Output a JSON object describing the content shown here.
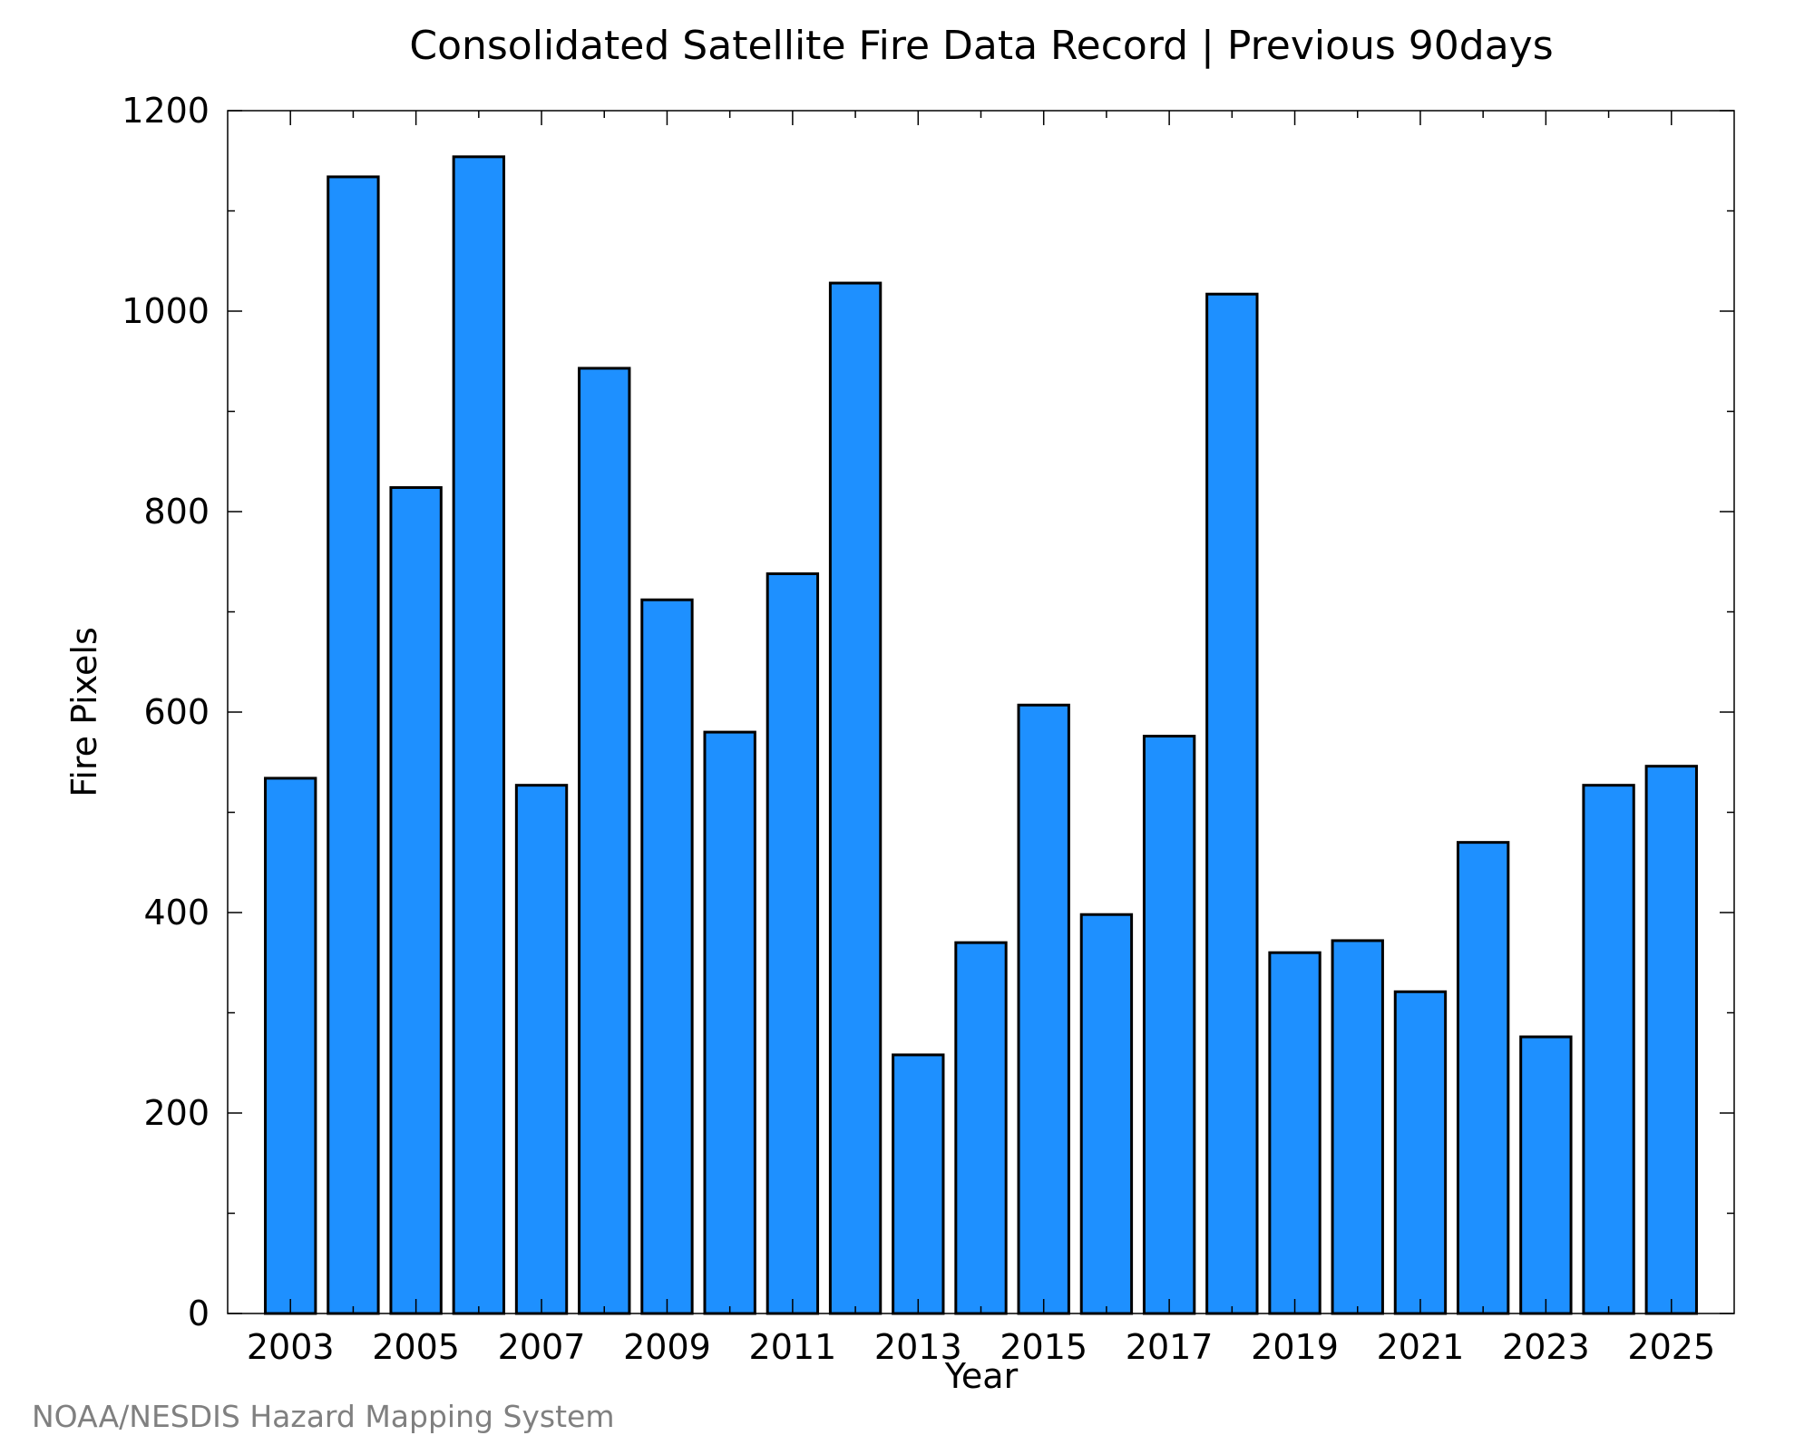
{
  "credit": "NOAA/NESDIS Hazard Mapping System",
  "colors": {
    "bar_fill": "#1E90FF",
    "bar_stroke": "#000000",
    "axis": "#000000",
    "credit_text": "#808080",
    "background": "#FFFFFF"
  },
  "chart_data": {
    "type": "bar",
    "title": "Consolidated Satellite Fire Data Record | Previous 90days",
    "xlabel": "Year",
    "ylabel": "Fire Pixels",
    "ylim": [
      0,
      1200
    ],
    "xlim": [
      2002.0,
      2026.0
    ],
    "yticks": [
      0,
      200,
      400,
      600,
      800,
      1000,
      1200
    ],
    "ytick_labels": [
      "0",
      "200",
      "400",
      "600",
      "800",
      "1000",
      "1200"
    ],
    "xticks": [
      2003,
      2005,
      2007,
      2009,
      2011,
      2013,
      2015,
      2017,
      2019,
      2021,
      2023,
      2025
    ],
    "xtick_labels": [
      "2003",
      "2005",
      "2007",
      "2009",
      "2011",
      "2013",
      "2015",
      "2017",
      "2019",
      "2021",
      "2023",
      "2025"
    ],
    "grid": false,
    "legend": "none",
    "x": [
      2003,
      2004,
      2005,
      2006,
      2007,
      2008,
      2009,
      2010,
      2011,
      2012,
      2013,
      2014,
      2015,
      2016,
      2017,
      2018,
      2019,
      2020,
      2021,
      2022,
      2023,
      2024,
      2025
    ],
    "values": [
      534,
      1134,
      824,
      1154,
      527,
      943,
      712,
      580,
      738,
      1028,
      258,
      370,
      607,
      398,
      576,
      1017,
      360,
      372,
      321,
      470,
      276,
      527,
      546
    ]
  }
}
